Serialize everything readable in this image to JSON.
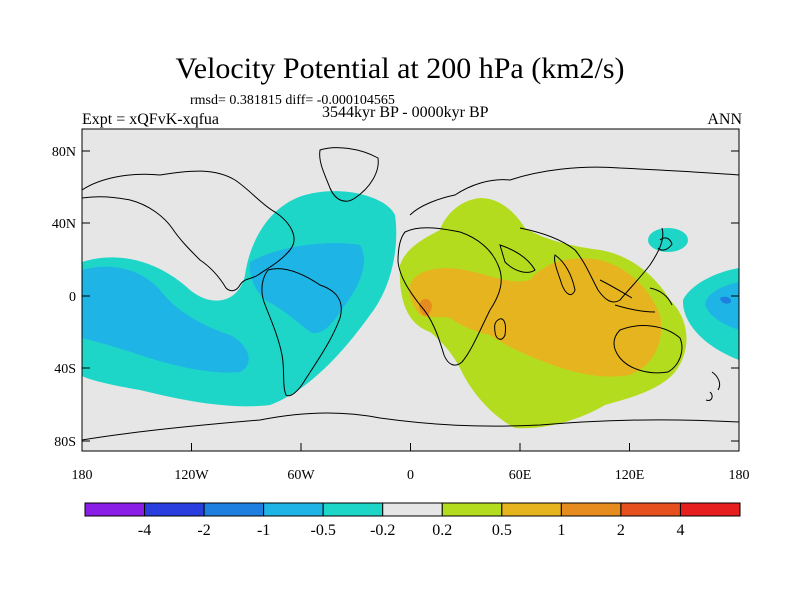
{
  "title": "Velocity Potential at 200 hPa (km2/s)",
  "stats": "rmsd= 0.381815 diff= -0.000104565",
  "experiment": "Expt = xQFvK-xqfua",
  "period": "3544kyr BP - 0000kyr BP",
  "season": "ANN",
  "lat_ticks": [
    "80N",
    "40N",
    "0",
    "40S",
    "80S"
  ],
  "lon_ticks": [
    "180",
    "120W",
    "60W",
    "0",
    "60E",
    "120E",
    "180"
  ],
  "colorbar": {
    "labels": [
      "-4",
      "-2",
      "-1",
      "-0.5",
      "-0.2",
      "0.2",
      "0.5",
      "1",
      "2",
      "4"
    ],
    "colors": [
      "#8a1ee6",
      "#2a3ee0",
      "#1e7fe0",
      "#1eb4e6",
      "#1ed6c8",
      "#e6e6e6",
      "#b4dc1e",
      "#e6b41e",
      "#e68c1e",
      "#e6501e",
      "#e61e1e"
    ]
  },
  "fill_colors": {
    "background": "#e6e6e6",
    "negative_weak": "#1ed6c8",
    "negative_mid": "#1eb4e6",
    "negative_strong": "#1e7fe0",
    "positive_weak": "#b4dc1e",
    "positive_mid": "#e6b41e",
    "positive_strong": "#e68c1e"
  }
}
